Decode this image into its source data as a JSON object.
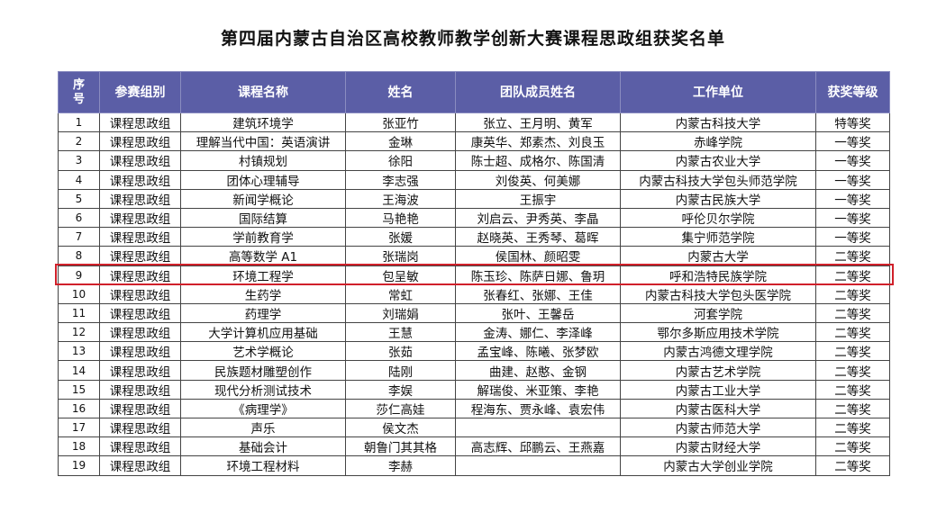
{
  "title": "第四届内蒙古自治区高校教师教学创新大赛课程思政组获奖名单",
  "highlight_color": "#d0202a",
  "header_color": "#5b5ea6",
  "highlighted_row": 9,
  "columns": [
    "序号",
    "参赛组别",
    "课程名称",
    "姓名",
    "团队成员姓名",
    "工作单位",
    "获奖等级"
  ],
  "rows": [
    [
      "1",
      "课程思政组",
      "建筑环境学",
      "张亚竹",
      "张立、王月明、黄军",
      "内蒙古科技大学",
      "特等奖"
    ],
    [
      "2",
      "课程思政组",
      "理解当代中国：英语演讲",
      "金琳",
      "康英华、郑素杰、刘良玉",
      "赤峰学院",
      "一等奖"
    ],
    [
      "3",
      "课程思政组",
      "村镇规划",
      "徐阳",
      "陈士超、成格尔、陈国清",
      "内蒙古农业大学",
      "一等奖"
    ],
    [
      "4",
      "课程思政组",
      "团体心理辅导",
      "李志强",
      "刘俊英、何美娜",
      "内蒙古科技大学包头师范学院",
      "一等奖"
    ],
    [
      "5",
      "课程思政组",
      "新闻学概论",
      "王海波",
      "王振宇",
      "内蒙古民族大学",
      "一等奖"
    ],
    [
      "6",
      "课程思政组",
      "国际结算",
      "马艳艳",
      "刘启云、尹秀英、李晶",
      "呼伦贝尔学院",
      "一等奖"
    ],
    [
      "7",
      "课程思政组",
      "学前教育学",
      "张媛",
      "赵晓英、王秀琴、葛晖",
      "集宁师范学院",
      "一等奖"
    ],
    [
      "8",
      "课程思政组",
      "高等数学 A1",
      "张瑞岗",
      "侯国林、颜昭雯",
      "内蒙古大学",
      "二等奖"
    ],
    [
      "9",
      "课程思政组",
      "环境工程学",
      "包呈敏",
      "陈玉珍、陈萨日娜、鲁玥",
      "呼和浩特民族学院",
      "二等奖"
    ],
    [
      "10",
      "课程思政组",
      "生药学",
      "常虹",
      "张春红、张娜、王佳",
      "内蒙古科技大学包头医学院",
      "二等奖"
    ],
    [
      "11",
      "课程思政组",
      "药理学",
      "刘瑞娟",
      "张叶、王馨岳",
      "河套学院",
      "二等奖"
    ],
    [
      "12",
      "课程思政组",
      "大学计算机应用基础",
      "王慧",
      "金涛、娜仁、李泽峰",
      "鄂尔多斯应用技术学院",
      "二等奖"
    ],
    [
      "13",
      "课程思政组",
      "艺术学概论",
      "张茹",
      "孟宝峰、陈曦、张梦欧",
      "内蒙古鸿德文理学院",
      "二等奖"
    ],
    [
      "14",
      "课程思政组",
      "民族题材雕塑创作",
      "陆刚",
      "曲建、赵憨、金钢",
      "内蒙古艺术学院",
      "二等奖"
    ],
    [
      "15",
      "课程思政组",
      "现代分析测试技术",
      "李娱",
      "解瑞俊、米亚策、李艳",
      "内蒙古工业大学",
      "二等奖"
    ],
    [
      "16",
      "课程思政组",
      "《病理学》",
      "莎仁高娃",
      "程海东、贾永峰、袁宏伟",
      "内蒙古医科大学",
      "二等奖"
    ],
    [
      "17",
      "课程思政组",
      "声乐",
      "侯文杰",
      "",
      "内蒙古师范大学",
      "二等奖"
    ],
    [
      "18",
      "课程思政组",
      "基础会计",
      "朝鲁门其其格",
      "高志辉、邱鹏云、王燕嘉",
      "内蒙古财经大学",
      "二等奖"
    ],
    [
      "19",
      "课程思政组",
      "环境工程材料",
      "李赫",
      "",
      "内蒙古大学创业学院",
      "二等奖"
    ]
  ]
}
